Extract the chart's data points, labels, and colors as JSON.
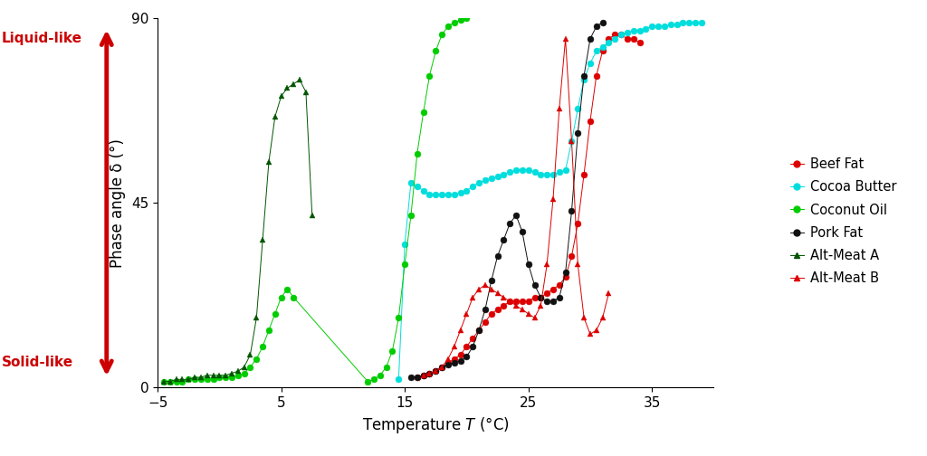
{
  "xlabel": "Temperature Τ (°C)",
  "ylabel": "Phase angle δ (°)",
  "xlim": [
    -5,
    40
  ],
  "ylim": [
    0,
    90
  ],
  "yticks": [
    0,
    45,
    90
  ],
  "xticks": [
    -5,
    5,
    15,
    25,
    35
  ],
  "background_color": "#ffffff",
  "arrow_color": "#cc0000",
  "liquid_like_label": "Liquid-like",
  "solid_like_label": "Solid-like",
  "series": {
    "beef_fat": {
      "color": "#dd0000",
      "marker": "o",
      "markersize": 5,
      "x": [
        16.0,
        16.5,
        17.0,
        17.5,
        18.0,
        18.5,
        19.0,
        19.5,
        20.0,
        20.5,
        21.0,
        21.5,
        22.0,
        22.5,
        23.0,
        23.5,
        24.0,
        24.5,
        25.0,
        25.5,
        26.0,
        26.5,
        27.0,
        27.5,
        28.0,
        28.5,
        29.0,
        29.5,
        30.0,
        30.5,
        31.0,
        31.5,
        32.0,
        32.5,
        33.0,
        33.5,
        34.0
      ],
      "y": [
        2.5,
        3,
        3.5,
        4,
        5,
        6,
        7,
        8,
        10,
        12,
        14,
        16,
        18,
        19,
        20,
        21,
        21,
        21,
        21,
        22,
        22,
        23,
        24,
        25,
        27,
        32,
        40,
        52,
        65,
        76,
        82,
        85,
        86,
        86,
        85,
        85,
        84
      ]
    },
    "cocoa_butter": {
      "color": "#00dddd",
      "marker": "o",
      "markersize": 5,
      "x": [
        14.5,
        15.0,
        15.5,
        16.0,
        16.5,
        17.0,
        17.5,
        18.0,
        18.5,
        19.0,
        19.5,
        20.0,
        20.5,
        21.0,
        21.5,
        22.0,
        22.5,
        23.0,
        23.5,
        24.0,
        24.5,
        25.0,
        25.5,
        26.0,
        26.5,
        27.0,
        27.5,
        28.0,
        28.5,
        29.0,
        29.5,
        30.0,
        30.5,
        31.0,
        31.5,
        32.0,
        32.5,
        33.0,
        33.5,
        34.0,
        34.5,
        35.0,
        35.5,
        36.0,
        36.5,
        37.0,
        37.5,
        38.0,
        38.5,
        39.0
      ],
      "y": [
        2,
        35,
        50,
        49,
        48,
        47,
        47,
        47,
        47,
        47,
        47.5,
        48,
        49,
        50,
        50.5,
        51,
        51.5,
        52,
        52.5,
        53,
        53,
        53,
        52.5,
        52,
        52,
        52,
        52.5,
        53,
        60,
        68,
        75,
        79,
        82,
        83,
        84,
        85,
        86,
        86.5,
        87,
        87,
        87.5,
        88,
        88,
        88,
        88.5,
        88.5,
        89,
        89,
        89,
        89
      ]
    },
    "coconut_oil": {
      "color": "#00cc00",
      "marker": "o",
      "markersize": 5,
      "x": [
        -4.5,
        -4.0,
        -3.5,
        -3.0,
        -2.5,
        -2.0,
        -1.5,
        -1.0,
        -0.5,
        0.0,
        0.5,
        1.0,
        1.5,
        2.0,
        2.5,
        3.0,
        3.5,
        4.0,
        4.5,
        5.0,
        5.5,
        6.0,
        12.0,
        12.5,
        13.0,
        13.5,
        14.0,
        14.5,
        15.0,
        15.5,
        16.0,
        16.5,
        17.0,
        17.5,
        18.0,
        18.5,
        19.0,
        19.5,
        20.0
      ],
      "y": [
        1.5,
        1.5,
        1.5,
        1.5,
        2,
        2,
        2,
        2,
        2,
        2.5,
        2.5,
        2.5,
        3,
        3.5,
        5,
        7,
        10,
        14,
        18,
        22,
        24,
        22,
        1.5,
        2,
        3,
        5,
        9,
        17,
        30,
        42,
        57,
        67,
        76,
        82,
        86,
        88,
        89,
        89.5,
        90
      ]
    },
    "pork_fat": {
      "color": "#111111",
      "marker": "o",
      "markersize": 5,
      "x": [
        15.5,
        16.0,
        16.5,
        17.0,
        17.5,
        18.0,
        18.5,
        19.0,
        19.5,
        20.0,
        20.5,
        21.0,
        21.5,
        22.0,
        22.5,
        23.0,
        23.5,
        24.0,
        24.5,
        25.0,
        25.5,
        26.0,
        26.5,
        27.0,
        27.5,
        28.0,
        28.5,
        29.0,
        29.5,
        30.0,
        30.5,
        31.0
      ],
      "y": [
        2.5,
        2.5,
        3,
        3.5,
        4,
        5,
        5.5,
        6,
        6.5,
        7.5,
        10,
        14,
        19,
        26,
        32,
        36,
        40,
        42,
        38,
        30,
        25,
        22,
        21,
        21,
        22,
        28,
        43,
        62,
        76,
        85,
        88,
        89
      ]
    },
    "alt_meat_a": {
      "color": "#005500",
      "marker": "^",
      "markersize": 5,
      "x": [
        -4.5,
        -4.0,
        -3.5,
        -3.0,
        -2.5,
        -2.0,
        -1.5,
        -1.0,
        -0.5,
        0.0,
        0.5,
        1.0,
        1.5,
        2.0,
        2.5,
        3.0,
        3.5,
        4.0,
        4.5,
        5.0,
        5.5,
        6.0,
        6.5,
        7.0,
        7.5
      ],
      "y": [
        1.5,
        1.5,
        2,
        2,
        2,
        2.5,
        2.5,
        3,
        3,
        3,
        3,
        3.5,
        4,
        5,
        8,
        17,
        36,
        55,
        66,
        71,
        73,
        74,
        75,
        72,
        42
      ]
    },
    "alt_meat_b": {
      "color": "#dd0000",
      "marker": "^",
      "markersize": 5,
      "x": [
        16.5,
        17.0,
        17.5,
        18.0,
        18.5,
        19.0,
        19.5,
        20.0,
        20.5,
        21.0,
        21.5,
        22.0,
        22.5,
        23.0,
        23.5,
        24.0,
        24.5,
        25.0,
        25.5,
        26.0,
        26.5,
        27.0,
        27.5,
        28.0,
        28.5,
        29.0,
        29.5,
        30.0,
        30.5,
        31.0,
        31.5
      ],
      "y": [
        3,
        3.5,
        4,
        5,
        7,
        10,
        14,
        18,
        22,
        24,
        25,
        24,
        23,
        22,
        21,
        20,
        19,
        18,
        17,
        20,
        30,
        46,
        68,
        85,
        60,
        30,
        17,
        13,
        14,
        17,
        23
      ]
    }
  }
}
